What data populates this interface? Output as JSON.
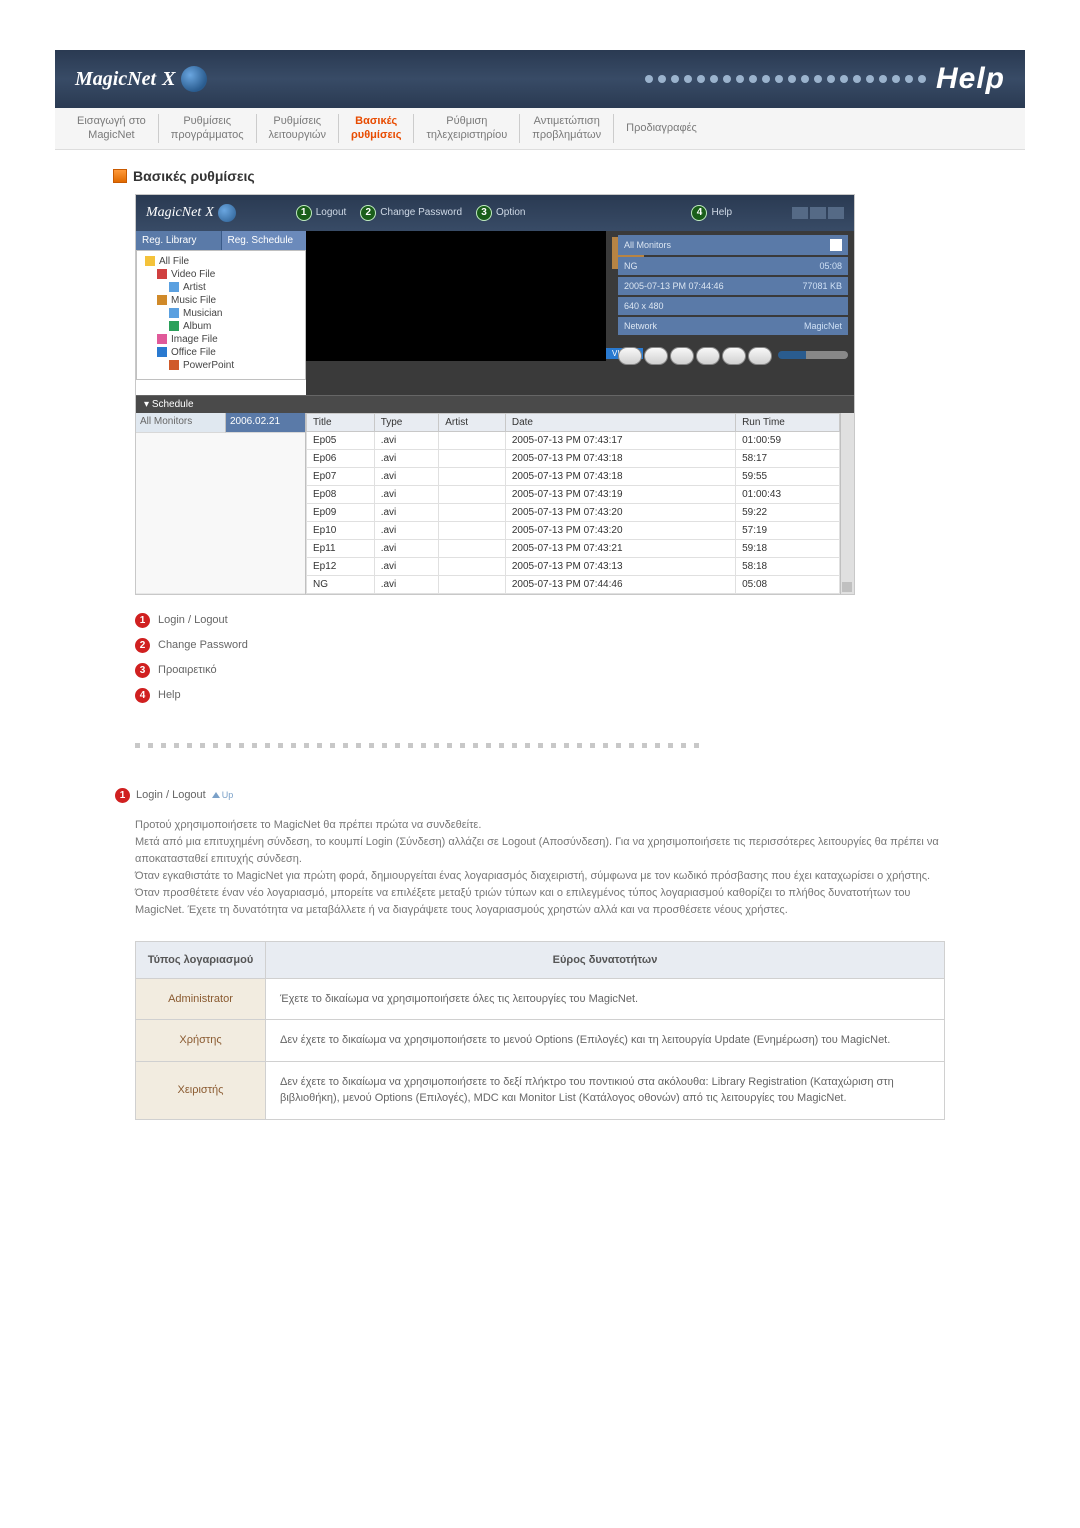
{
  "banner": {
    "brand_a": "MagicNet",
    "brand_b": "X",
    "help": "Help"
  },
  "nav": {
    "items": [
      {
        "l1": "Εισαγωγή στο",
        "l2": "MagicNet"
      },
      {
        "l1": "Ρυθμίσεις",
        "l2": "προγράμματος"
      },
      {
        "l1": "Ρυθμίσεις",
        "l2": "λειτουργιών"
      },
      {
        "l1": "Βασικές",
        "l2": "ρυθμίσεις"
      },
      {
        "l1": "Ρύθμιση",
        "l2": "τηλεχειριστηρίου"
      },
      {
        "l1": "Αντιμετώπιση",
        "l2": "προβλημάτων"
      },
      {
        "l1": "Προδιαγραφές",
        "l2": ""
      }
    ],
    "active_index": 3
  },
  "section_title": "Βασικές ρυθμίσεις",
  "shot": {
    "brand_a": "MagicNet",
    "brand_b": "X",
    "tools": [
      {
        "n": "1",
        "label": "Logout"
      },
      {
        "n": "2",
        "label": "Change Password"
      },
      {
        "n": "3",
        "label": "Option"
      },
      {
        "n": "4",
        "label": "Help"
      }
    ],
    "tabs": {
      "a": "Reg. Library",
      "b": "Reg. Schedule"
    },
    "tree": [
      {
        "cls": "ti-folder",
        "txt": "All File",
        "ind": ""
      },
      {
        "cls": "ti-video",
        "txt": "Video File",
        "ind": "indent1"
      },
      {
        "cls": "ti-art",
        "txt": "Artist",
        "ind": "indent2"
      },
      {
        "cls": "ti-music",
        "txt": "Music File",
        "ind": "indent1"
      },
      {
        "cls": "ti-art",
        "txt": "Musician",
        "ind": "indent2"
      },
      {
        "cls": "ti-album",
        "txt": "Album",
        "ind": "indent2"
      },
      {
        "cls": "ti-img",
        "txt": "Image File",
        "ind": "indent1"
      },
      {
        "cls": "ti-office",
        "txt": "Office File",
        "ind": "indent1"
      },
      {
        "cls": "ti-ppt",
        "txt": "PowerPoint",
        "ind": "indent2"
      }
    ],
    "preview": {
      "row1_a": "All Monitors",
      "row2_a": "NG",
      "row2_b": "05:08",
      "row3_a": "2005-07-13 PM 07:44:46",
      "row3_b": "77081 KB",
      "row4_a": "640 x 480",
      "row5_a": "Network",
      "row5_b": "MagicNet",
      "tag": "VIDEO"
    },
    "schedule_title": "Schedule",
    "schedule_left": {
      "label": "All Monitors",
      "date": "2006.02.21"
    },
    "grid": {
      "cols": [
        "Title",
        "Type",
        "Artist",
        "Date",
        "Run Time"
      ],
      "rows": [
        [
          "Ep05",
          ".avi",
          "",
          "2005-07-13 PM 07:43:17",
          "01:00:59"
        ],
        [
          "Ep06",
          ".avi",
          "",
          "2005-07-13 PM 07:43:18",
          "58:17"
        ],
        [
          "Ep07",
          ".avi",
          "",
          "2005-07-13 PM 07:43:18",
          "59:55"
        ],
        [
          "Ep08",
          ".avi",
          "",
          "2005-07-13 PM 07:43:19",
          "01:00:43"
        ],
        [
          "Ep09",
          ".avi",
          "",
          "2005-07-13 PM 07:43:20",
          "59:22"
        ],
        [
          "Ep10",
          ".avi",
          "",
          "2005-07-13 PM 07:43:20",
          "57:19"
        ],
        [
          "Ep11",
          ".avi",
          "",
          "2005-07-13 PM 07:43:21",
          "59:18"
        ],
        [
          "Ep12",
          ".avi",
          "",
          "2005-07-13 PM 07:43:13",
          "58:18"
        ],
        [
          "NG",
          ".avi",
          "",
          "2005-07-13 PM 07:44:46",
          "05:08"
        ]
      ]
    }
  },
  "legend": [
    {
      "n": "1",
      "txt": "Login / Logout"
    },
    {
      "n": "2",
      "txt": "Change Password"
    },
    {
      "n": "3",
      "txt": "Προαιρετικό"
    },
    {
      "n": "4",
      "txt": "Help"
    }
  ],
  "subhead": {
    "n": "1",
    "txt": "Login / Logout",
    "up": "Up"
  },
  "para_lines": [
    "Προτού χρησιμοποιήσετε το MagicNet θα πρέπει πρώτα να συνδεθείτε.",
    "Μετά από μια επιτυχημένη σύνδεση, το κουμπί Login (Σύνδεση) αλλάζει σε Logout (Αποσύνδεση). Για να χρησιμοποιήσετε τις περισσότερες λειτουργίες θα πρέπει να αποκατασταθεί επιτυχής σύνδεση.",
    "Όταν εγκαθιστάτε το MagicNet για πρώτη φορά, δημιουργείται ένας λογαριασμός διαχειριστή, σύμφωνα με τον κωδικό πρόσβασης που έχει καταχωρίσει ο χρήστης.",
    "Όταν προσθέτετε έναν νέο λογαριασμό, μπορείτε να επιλέξετε μεταξύ τριών τύπων και ο επιλεγμένος τύπος λογαριασμού καθορίζει το πλήθος δυνατοτήτων του MagicNet. Έχετε τη δυνατότητα να μεταβάλλετε ή να διαγράψετε τους λογαριασμούς χρηστών αλλά και να προσθέσετε νέους χρήστες."
  ],
  "acct": {
    "h1": "Τύπος λογαριασμού",
    "h2": "Εύρος δυνατοτήτων",
    "rows": [
      {
        "lab": "Administrator",
        "txt": "Έχετε το δικαίωμα να χρησιμοποιήσετε όλες τις λειτουργίες του MagicNet."
      },
      {
        "lab": "Χρήστης",
        "txt": "Δεν έχετε το δικαίωμα να χρησιμοποιήσετε το μενού Options (Επιλογές) και τη λειτουργία Update (Ενημέρωση) του MagicNet."
      },
      {
        "lab": "Χειριστής",
        "txt": "Δεν έχετε το δικαίωμα να χρησιμοποιήσετε το δεξί πλήκτρο του ποντικιού στα ακόλουθα: Library Registration (Καταχώριση στη βιβλιοθήκη), μενού Options (Επιλογές), MDC και Monitor List (Κατάλογος οθονών) από τις λειτουργίες του MagicNet."
      }
    ]
  }
}
